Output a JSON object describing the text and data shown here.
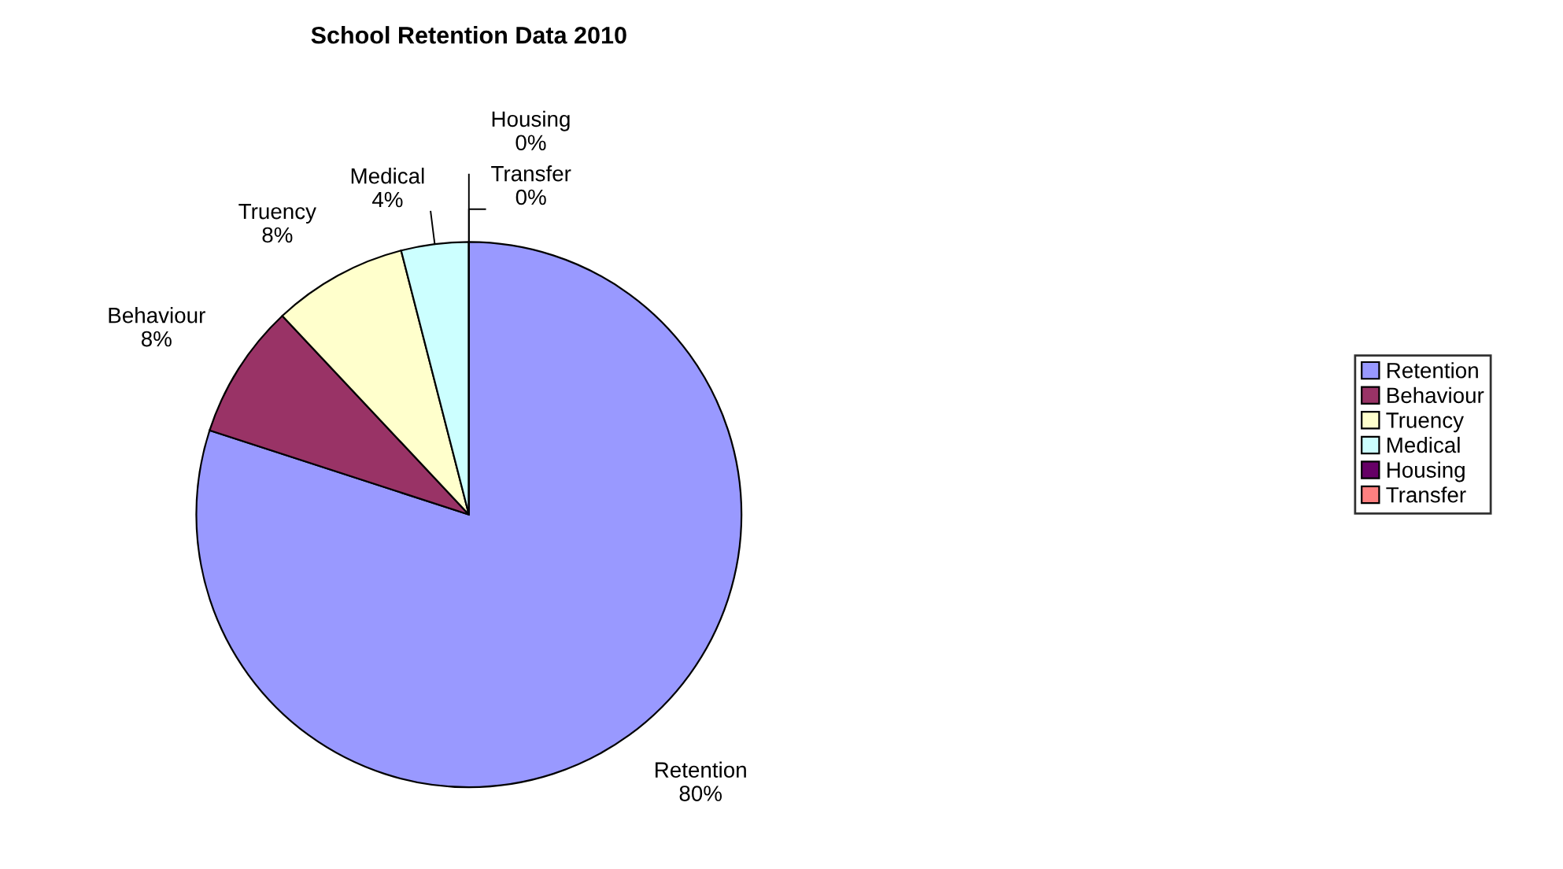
{
  "chart_data": {
    "type": "pie",
    "title": "School Retention Data 2010",
    "categories": [
      "Retention",
      "Behaviour",
      "Truency",
      "Medical",
      "Housing",
      "Transfer"
    ],
    "values": [
      80,
      8,
      8,
      4,
      0,
      0
    ],
    "value_labels": [
      "80%",
      "8%",
      "8%",
      "4%",
      "0%",
      "0%"
    ],
    "colors": [
      "#9999ff",
      "#993366",
      "#ffffcc",
      "#ccffff",
      "#660066",
      "#ff8080"
    ],
    "legend": "right"
  }
}
